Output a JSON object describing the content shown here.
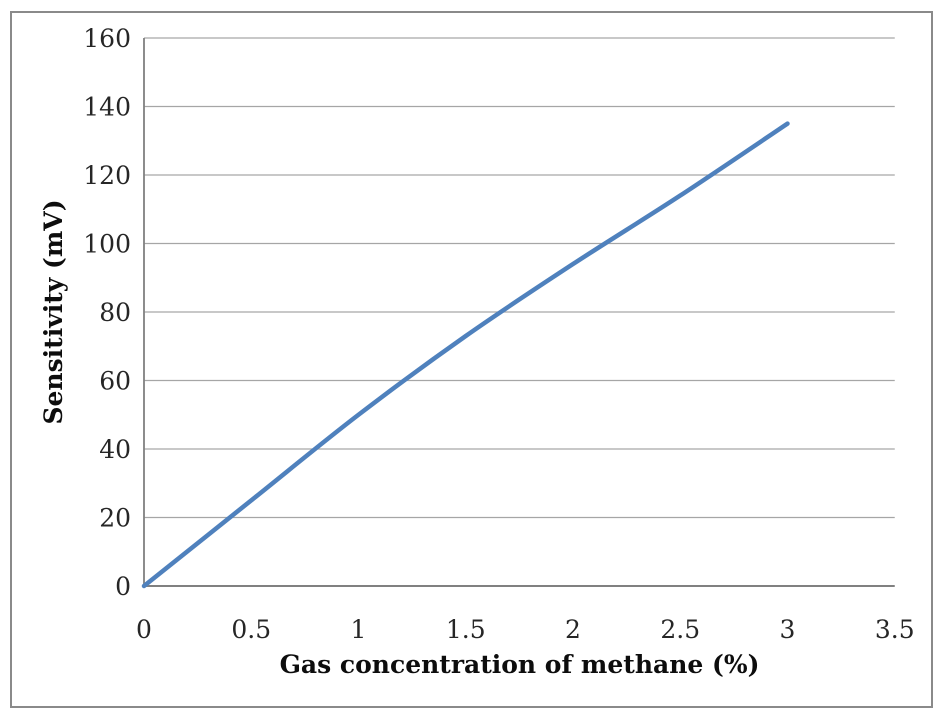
{
  "figure": {
    "background_color": "#ffffff",
    "frame_border_color": "#8a8a8a"
  },
  "chart_data": {
    "type": "line",
    "title": "",
    "xlabel": "Gas concentration of methane (%)",
    "ylabel": "Sensitivity (mV)",
    "x": [
      0,
      0.5,
      1,
      1.5,
      2,
      2.5,
      3
    ],
    "series": [
      {
        "name": "Sensitivity",
        "values": [
          0,
          25,
          50,
          73,
          94,
          114,
          135
        ]
      }
    ],
    "xlim": [
      0,
      3.5
    ],
    "ylim": [
      0,
      160
    ],
    "x_tick_labels": [
      "0",
      "0.5",
      "1",
      "1.5",
      "2",
      "2.5",
      "3",
      "3.5"
    ],
    "x_tick_values": [
      0,
      0.5,
      1,
      1.5,
      2,
      2.5,
      3,
      3.5
    ],
    "y_tick_labels": [
      "0",
      "20",
      "40",
      "60",
      "80",
      "100",
      "120",
      "140",
      "160"
    ],
    "y_tick_values": [
      0,
      20,
      40,
      60,
      80,
      100,
      120,
      140,
      160
    ],
    "grid": "horizontal",
    "legend": "none",
    "line_color": "#4F81BD",
    "gridline_color": "#a6a6a6",
    "axis_color": "#808080",
    "tick_text_color": "#262626"
  }
}
